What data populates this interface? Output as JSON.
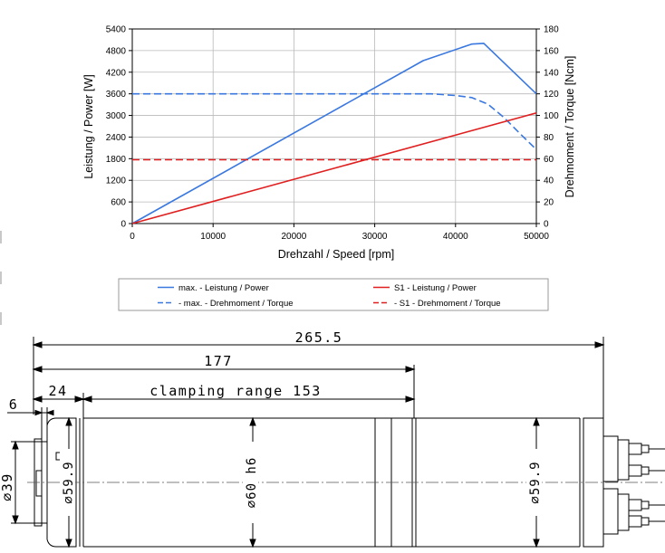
{
  "chart_data": {
    "type": "line",
    "xlabel": "Drehzahl / Speed [rpm]",
    "ylabel_left": "Leistung / Power [W]",
    "ylabel_right": "Drehmoment / Torque [Ncm]",
    "xlim": [
      0,
      50000
    ],
    "ylim_left": [
      0,
      5400
    ],
    "ylim_right": [
      0,
      180
    ],
    "x_ticks": [
      "0",
      "10000",
      "20000",
      "30000",
      "40000",
      "50000"
    ],
    "y_left_ticks": [
      "0",
      "600",
      "1200",
      "1800",
      "2400",
      "3000",
      "3600",
      "4200",
      "4800",
      "5400"
    ],
    "y_right_ticks": [
      "0",
      "20",
      "40",
      "60",
      "80",
      "100",
      "120",
      "140",
      "160",
      "180"
    ],
    "grid": true,
    "legend_placement": "bottom",
    "series": [
      {
        "name": "max. - Leistung / Power",
        "axis": "left",
        "color": "#3a78e0",
        "dash": "solid",
        "x": [
          0,
          36000,
          42000,
          43500,
          50000
        ],
        "y": [
          0,
          4520,
          4980,
          5000,
          3600
        ]
      },
      {
        "name": "- max. - Drehmoment / Torque",
        "axis": "right",
        "color": "#3a78e0",
        "dash": "dashed",
        "x": [
          0,
          37000,
          40000,
          42000,
          44000,
          46000,
          48000,
          50000
        ],
        "y": [
          120,
          120,
          118.5,
          116.5,
          110.5,
          98,
          83,
          68.5
        ]
      },
      {
        "name": "S1 - Leistung / Power",
        "axis": "left",
        "color": "#e02020",
        "dash": "solid",
        "x": [
          0,
          50000
        ],
        "y": [
          0,
          3070
        ]
      },
      {
        "name": "- S1 - Drehmoment / Torque",
        "axis": "right",
        "color": "#e02020",
        "dash": "dashed",
        "x": [
          0,
          50000
        ],
        "y": [
          59,
          59
        ]
      }
    ]
  },
  "drawing": {
    "dim_total": "265.5",
    "dim_177": "177",
    "dim_24": "24",
    "dim_clamp": "clamping range 153",
    "dim_6": "6",
    "dia_39": "⌀39",
    "dia_599_left": "⌀59.9",
    "dia_60": "⌀60 h6",
    "dia_599_right": "⌀59.9"
  }
}
